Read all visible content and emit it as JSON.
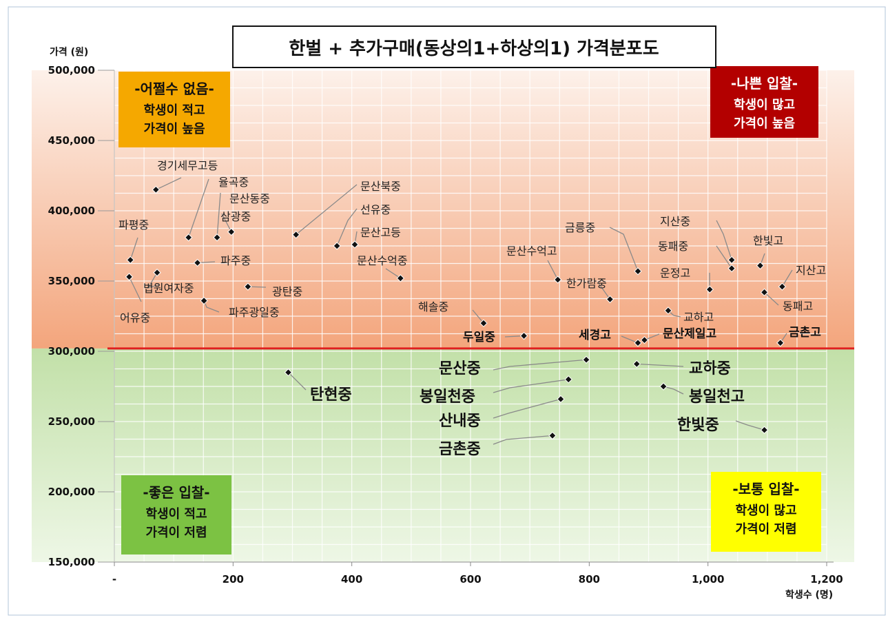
{
  "chart_data": {
    "type": "scatter",
    "title": "한벌 + 추가구매(동상의1+하상의1) 가격분포도",
    "xlabel": "학생수 (명)",
    "ylabel": "가격 (원)",
    "xlim": [
      0,
      1200
    ],
    "ylim": [
      150000,
      500000
    ],
    "x_tick_labels": [
      "-",
      "200",
      "400",
      "600",
      "800",
      "1,000",
      "1,200"
    ],
    "x_tick_values": [
      0,
      200,
      400,
      600,
      800,
      1000,
      1200
    ],
    "y_tick_labels": [
      "150,000",
      "200,000",
      "250,000",
      "300,000",
      "350,000",
      "400,000",
      "450,000",
      "500,000"
    ],
    "y_tick_values": [
      150000,
      200000,
      250000,
      300000,
      350000,
      400000,
      450000,
      500000
    ],
    "grid": true,
    "reference_line": {
      "y": 302000,
      "color": "#e02020"
    },
    "quadrants": [
      {
        "key": "tl",
        "title": "-어쩔수 없음-",
        "lines": [
          "학생이 적고",
          "가격이 높음"
        ],
        "bg": "#f5a800",
        "fg": "#111111"
      },
      {
        "key": "tr",
        "title": "-나쁜 입찰-",
        "lines": [
          "학생이 많고",
          "가격이 높음"
        ],
        "bg": "#b30000",
        "fg": "#ffffff"
      },
      {
        "key": "bl",
        "title": "-좋은 입찰-",
        "lines": [
          "학생이 적고",
          "가격이 저렴"
        ],
        "bg": "#7cc243",
        "fg": "#111111"
      },
      {
        "key": "br",
        "title": "-보통 입찰-",
        "lines": [
          "학생이 많고",
          "가격이 저렴"
        ],
        "bg": "#ffff00",
        "fg": "#111111"
      }
    ],
    "points": [
      {
        "name": "파평중",
        "x": 27,
        "y": 365000
      },
      {
        "name": "어유중",
        "x": 25,
        "y": 353000
      },
      {
        "name": "경기세무고등",
        "x": 70,
        "y": 415000
      },
      {
        "name": "법원여자중",
        "x": 72,
        "y": 356000
      },
      {
        "name": "율곡중",
        "x": 125,
        "y": 381000
      },
      {
        "name": "문산동중",
        "x": 173,
        "y": 381000
      },
      {
        "name": "삼광중",
        "x": 197,
        "y": 385000
      },
      {
        "name": "파주중",
        "x": 140,
        "y": 363000
      },
      {
        "name": "파주광일중",
        "x": 151,
        "y": 336000
      },
      {
        "name": "광탄중",
        "x": 225,
        "y": 346000
      },
      {
        "name": "탄현중",
        "x": 293,
        "y": 285000
      },
      {
        "name": "문산북중",
        "x": 306,
        "y": 383000
      },
      {
        "name": "선유중",
        "x": 375,
        "y": 375000
      },
      {
        "name": "문산고등",
        "x": 405,
        "y": 376000
      },
      {
        "name": "문산수억중",
        "x": 482,
        "y": 352000
      },
      {
        "name": "해솔중",
        "x": 622,
        "y": 320000
      },
      {
        "name": "두일중",
        "x": 690,
        "y": 311000
      },
      {
        "name": "문산수억고",
        "x": 747,
        "y": 351000
      },
      {
        "name": "문산중",
        "x": 795,
        "y": 294000
      },
      {
        "name": "봉일천중",
        "x": 765,
        "y": 280000
      },
      {
        "name": "산내중",
        "x": 752,
        "y": 266000
      },
      {
        "name": "금촌중",
        "x": 738,
        "y": 240000
      },
      {
        "name": "한가람중",
        "x": 835,
        "y": 337000
      },
      {
        "name": "금릉중",
        "x": 882,
        "y": 357000
      },
      {
        "name": "세경고",
        "x": 882,
        "y": 306000
      },
      {
        "name": "문산제일고",
        "x": 893,
        "y": 308000
      },
      {
        "name": "교하중",
        "x": 880,
        "y": 291000
      },
      {
        "name": "봉일천고",
        "x": 925,
        "y": 275000
      },
      {
        "name": "교하고",
        "x": 933,
        "y": 329000
      },
      {
        "name": "운정고",
        "x": 1003,
        "y": 344000
      },
      {
        "name": "지산중",
        "x": 1040,
        "y": 365000
      },
      {
        "name": "동패중",
        "x": 1040,
        "y": 359000
      },
      {
        "name": "한빛고",
        "x": 1088,
        "y": 361000
      },
      {
        "name": "지산고",
        "x": 1125,
        "y": 346000
      },
      {
        "name": "동패고",
        "x": 1095,
        "y": 342000
      },
      {
        "name": "금촌고",
        "x": 1122,
        "y": 306000
      },
      {
        "name": "한빛중",
        "x": 1095,
        "y": 244000
      }
    ]
  }
}
